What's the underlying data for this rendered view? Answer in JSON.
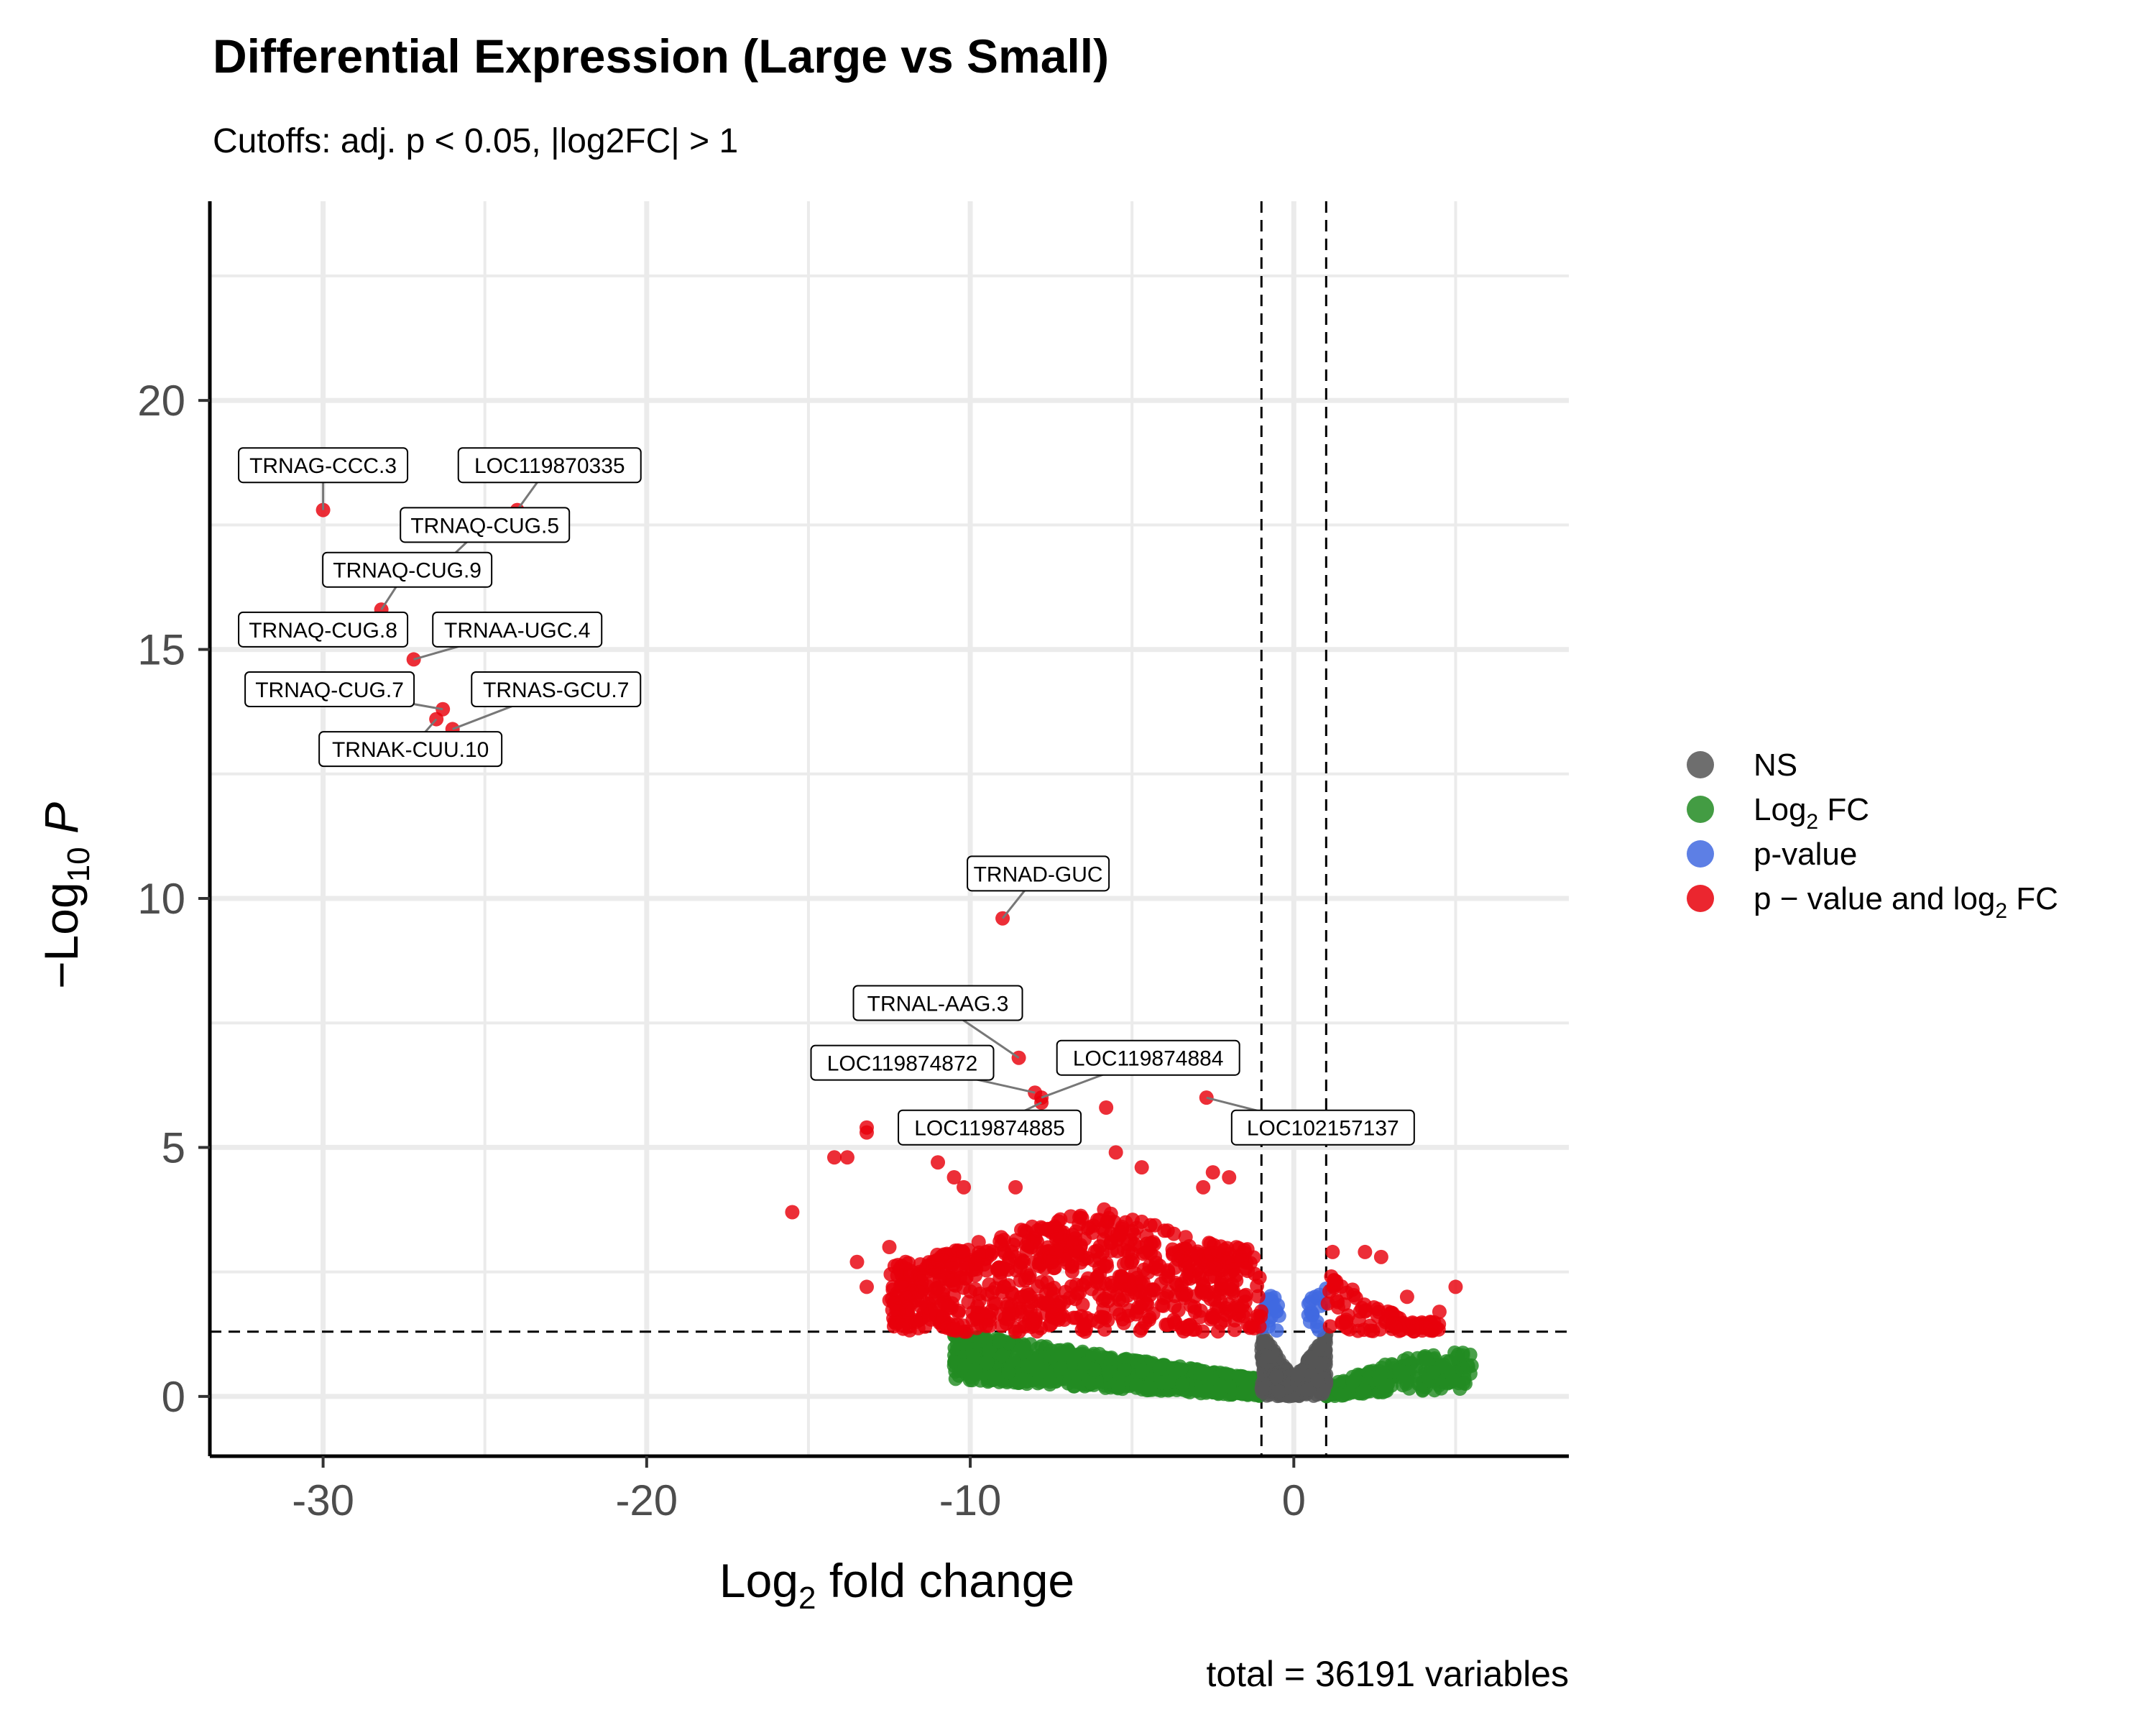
{
  "chart_data": {
    "type": "scatter",
    "title": "Differential Expression (Large vs Small)",
    "subtitle": "Cutoffs: adj. p < 0.05, |log2FC| > 1",
    "xlabel": {
      "main": "Log",
      "sub": "2",
      "rest": " fold change"
    },
    "ylabel": {
      "prefix": "−Log",
      "sub": "10",
      "rest": " P"
    },
    "xlim": [
      -33.5,
      8.5
    ],
    "ylim": [
      -1.2,
      24
    ],
    "x_ticks": [
      -30,
      -20,
      -10,
      0
    ],
    "x_tick_labels": [
      "-30",
      "-20",
      "-10",
      "0"
    ],
    "y_ticks": [
      0,
      5,
      10,
      15,
      20
    ],
    "y_tick_labels": [
      "0",
      "5",
      "10",
      "15",
      "20"
    ],
    "cutoffs": {
      "x": [
        -1,
        1
      ],
      "y": 1.3
    },
    "caption": "total = 36191 variables",
    "grid": true,
    "legend_position": "right",
    "legend": [
      {
        "key": "ns",
        "label": "NS",
        "color": "#555555"
      },
      {
        "key": "fc",
        "label": "Log",
        "sub": "2",
        "rest": " FC",
        "color": "#228B22"
      },
      {
        "key": "p",
        "label": "p-value",
        "color": "#4169E1"
      },
      {
        "key": "both",
        "label": "p − value and log",
        "sub": "2",
        "rest": " FC",
        "color": "#E8000B"
      }
    ],
    "labeled_points": [
      {
        "label": "TRNAG-CCC.3",
        "x": -30.0,
        "y": 17.8,
        "lx": -30.0,
        "ly": 18.7
      },
      {
        "label": "LOC119870335",
        "x": -24.0,
        "y": 17.8,
        "lx": -23.0,
        "ly": 18.7
      },
      {
        "label": "TRNAQ-CUG.5",
        "x": -26.3,
        "y": 16.7,
        "lx": -25.0,
        "ly": 17.5
      },
      {
        "label": "TRNAQ-CUG.9",
        "x": -28.2,
        "y": 15.8,
        "lx": -27.4,
        "ly": 16.6
      },
      {
        "label": "TRNAQ-CUG.8",
        "x": -28.5,
        "y": 15.6,
        "lx": -30.0,
        "ly": 15.4
      },
      {
        "label": "TRNAA-UGC.4",
        "x": -27.2,
        "y": 14.8,
        "lx": -24.0,
        "ly": 15.4
      },
      {
        "label": "TRNAQ-CUG.7",
        "x": -26.3,
        "y": 13.8,
        "lx": -29.8,
        "ly": 14.2
      },
      {
        "label": "TRNAS-GCU.7",
        "x": -26.0,
        "y": 13.4,
        "lx": -22.8,
        "ly": 14.2
      },
      {
        "label": "TRNAK-CUU.10",
        "x": -26.5,
        "y": 13.6,
        "lx": -27.3,
        "ly": 13.0
      },
      {
        "label": "TRNAD-GUC",
        "x": -9.0,
        "y": 9.6,
        "lx": -7.9,
        "ly": 10.5
      },
      {
        "label": "TRNAL-AAG.3",
        "x": -8.5,
        "y": 6.8,
        "lx": -11.0,
        "ly": 7.9
      },
      {
        "label": "LOC119874872",
        "x": -8.0,
        "y": 6.1,
        "lx": -12.1,
        "ly": 6.7
      },
      {
        "label": "LOC119874884",
        "x": -7.8,
        "y": 6.0,
        "lx": -4.5,
        "ly": 6.8
      },
      {
        "label": "LOC119874885",
        "x": -7.8,
        "y": 5.9,
        "lx": -9.4,
        "ly": 5.4
      },
      {
        "label": "LOC102157137",
        "x": -2.7,
        "y": 6.0,
        "lx": 0.9,
        "ly": 5.4
      }
    ],
    "highlight_points": [
      {
        "x": -15.5,
        "y": 3.7
      },
      {
        "x": -14.2,
        "y": 4.8
      },
      {
        "x": -13.8,
        "y": 4.8
      },
      {
        "x": -13.2,
        "y": 5.4
      },
      {
        "x": -13.2,
        "y": 5.3
      },
      {
        "x": -11.0,
        "y": 4.7
      },
      {
        "x": -10.5,
        "y": 4.4
      },
      {
        "x": -10.2,
        "y": 4.2
      },
      {
        "x": -8.6,
        "y": 4.2
      },
      {
        "x": -5.8,
        "y": 5.8
      },
      {
        "x": -5.5,
        "y": 4.9
      },
      {
        "x": -4.7,
        "y": 4.6
      },
      {
        "x": -2.8,
        "y": 4.2
      },
      {
        "x": -2.5,
        "y": 4.5
      },
      {
        "x": -2.0,
        "y": 4.4
      },
      {
        "x": -12.5,
        "y": 3.0
      },
      {
        "x": -12.0,
        "y": 2.7
      },
      {
        "x": -13.5,
        "y": 2.7
      },
      {
        "x": -11.5,
        "y": 2.3
      },
      {
        "x": -13.2,
        "y": 2.2
      },
      {
        "x": 3.5,
        "y": 2.0
      },
      {
        "x": 4.5,
        "y": 1.7
      },
      {
        "x": 5.0,
        "y": 2.2
      },
      {
        "x": 2.7,
        "y": 2.8
      },
      {
        "x": 2.2,
        "y": 2.9
      },
      {
        "x": 1.2,
        "y": 2.9
      }
    ],
    "ns_region": {
      "x": [
        -1,
        1
      ],
      "y": [
        0,
        1.3
      ]
    },
    "fc_region": {
      "x_min": -10.5,
      "x_max": 5.5,
      "y_max": 1.3
    },
    "p_region": {
      "x": [
        -1,
        1
      ],
      "y": [
        1.3,
        2.3
      ]
    },
    "both_region": {
      "x_min": -12.5,
      "x_max": 4.5,
      "y_min": 1.3,
      "y_max": 3.5
    }
  }
}
